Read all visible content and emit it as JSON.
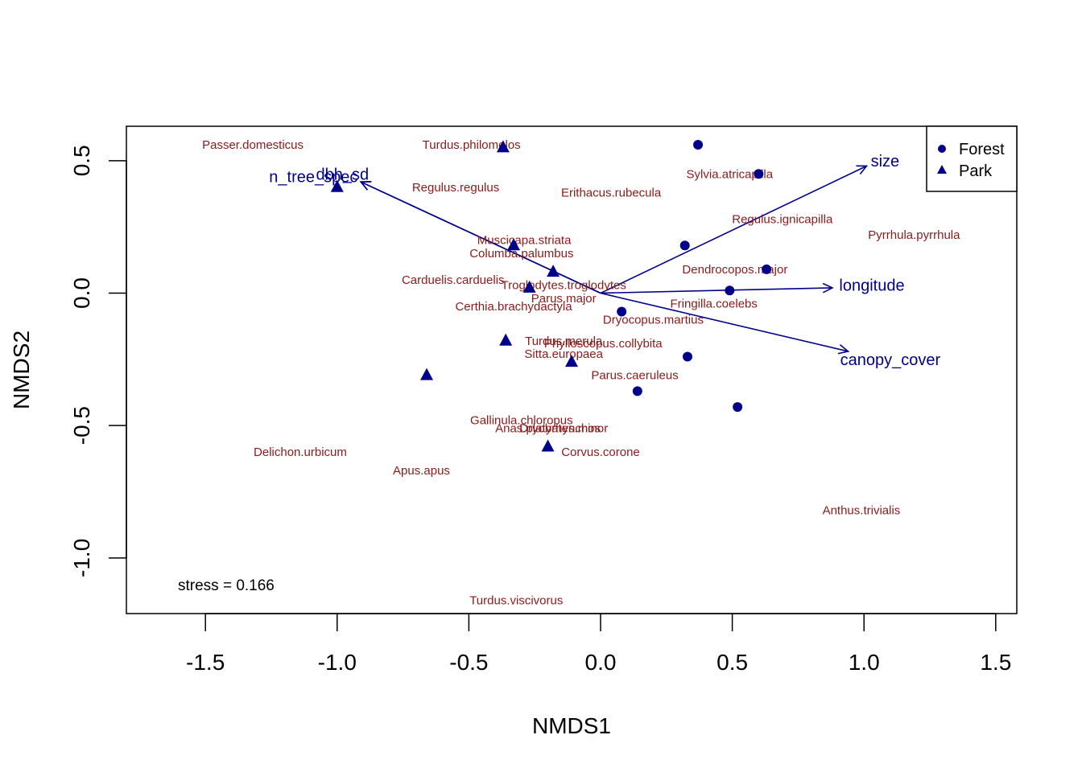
{
  "chart_data": {
    "type": "scatter",
    "xlabel": "NMDS1",
    "ylabel": "NMDS2",
    "xlim": [
      -1.8,
      1.58
    ],
    "ylim": [
      -1.21,
      0.63
    ],
    "x_ticks": [
      -1.5,
      -1.0,
      -0.5,
      0.0,
      0.5,
      1.0,
      1.5
    ],
    "x_tick_labels": [
      "-1.5",
      "-1.0",
      "-0.5",
      "0.0",
      "0.5",
      "1.0",
      "1.5"
    ],
    "y_ticks": [
      -1.0,
      -0.5,
      0.0,
      0.5
    ],
    "y_tick_labels": [
      "-1.0",
      "-0.5",
      "0.0",
      "0.5"
    ],
    "grid": false,
    "legend_position": "top-right",
    "annotation": "stress = 0.166",
    "series": [
      {
        "name": "Forest",
        "marker": "circle",
        "color": "#00008B",
        "points": [
          {
            "x": 0.37,
            "y": 0.56
          },
          {
            "x": 0.6,
            "y": 0.45
          },
          {
            "x": 0.32,
            "y": 0.18
          },
          {
            "x": 0.63,
            "y": 0.09
          },
          {
            "x": 0.49,
            "y": 0.01
          },
          {
            "x": 0.08,
            "y": -0.07
          },
          {
            "x": 0.33,
            "y": -0.24
          },
          {
            "x": 0.14,
            "y": -0.37
          },
          {
            "x": 0.52,
            "y": -0.43
          }
        ]
      },
      {
        "name": "Park",
        "marker": "triangle",
        "color": "#00008B",
        "points": [
          {
            "x": -0.37,
            "y": 0.55
          },
          {
            "x": -1.0,
            "y": 0.4
          },
          {
            "x": -0.33,
            "y": 0.18
          },
          {
            "x": -0.18,
            "y": 0.08
          },
          {
            "x": -0.27,
            "y": 0.02
          },
          {
            "x": -0.36,
            "y": -0.18
          },
          {
            "x": -0.11,
            "y": -0.26
          },
          {
            "x": -0.66,
            "y": -0.31
          },
          {
            "x": -0.2,
            "y": -0.58
          }
        ]
      }
    ],
    "species": [
      {
        "label": "Passer.domesticus",
        "x": -1.32,
        "y": 0.56
      },
      {
        "label": "Turdus.philomelos",
        "x": -0.49,
        "y": 0.56
      },
      {
        "label": "Sylvia.atricapilla",
        "x": 0.49,
        "y": 0.45
      },
      {
        "label": "Regulus.regulus",
        "x": -0.55,
        "y": 0.4
      },
      {
        "label": "Erithacus.rubecula",
        "x": 0.04,
        "y": 0.38
      },
      {
        "label": "Regulus.ignicapilla",
        "x": 0.69,
        "y": 0.28
      },
      {
        "label": "Pyrrhula.pyrrhula",
        "x": 1.19,
        "y": 0.22
      },
      {
        "label": "Muscicapa.striata",
        "x": -0.29,
        "y": 0.2
      },
      {
        "label": "Columba.palumbus",
        "x": -0.3,
        "y": 0.15
      },
      {
        "label": "Dendrocopos.major",
        "x": 0.51,
        "y": 0.09
      },
      {
        "label": "Carduelis.carduelis",
        "x": -0.56,
        "y": 0.05
      },
      {
        "label": "Troglodytes.troglodytes",
        "x": -0.14,
        "y": 0.03
      },
      {
        "label": "Parus.major",
        "x": -0.14,
        "y": -0.02
      },
      {
        "label": "Fringilla.coelebs",
        "x": 0.43,
        "y": -0.04
      },
      {
        "label": "Certhia.brachydactyla",
        "x": -0.33,
        "y": -0.05
      },
      {
        "label": "Dryocopus.martius",
        "x": 0.2,
        "y": -0.1
      },
      {
        "label": "Turdus.merula",
        "x": -0.14,
        "y": -0.18
      },
      {
        "label": "Phylloscopus.collybita",
        "x": 0.01,
        "y": -0.19
      },
      {
        "label": "Sitta.europaea",
        "x": -0.14,
        "y": -0.23
      },
      {
        "label": "Parus.caeruleus",
        "x": 0.13,
        "y": -0.31
      },
      {
        "label": "Gallinula.chloropus",
        "x": -0.3,
        "y": -0.48
      },
      {
        "label": "Anas.platyrhynchos",
        "x": -0.2,
        "y": -0.51
      },
      {
        "label": "Dryobates.minor",
        "x": -0.14,
        "y": -0.51
      },
      {
        "label": "Corvus.corone",
        "x": 0.0,
        "y": -0.6
      },
      {
        "label": "Delichon.urbicum",
        "x": -1.14,
        "y": -0.6
      },
      {
        "label": "Apus.apus",
        "x": -0.68,
        "y": -0.67
      },
      {
        "label": "Anthus.trivialis",
        "x": 0.99,
        "y": -0.82
      },
      {
        "label": "Turdus.viscivorus",
        "x": -0.32,
        "y": -1.16
      }
    ],
    "vectors": [
      {
        "label": "n_tree_spec",
        "x": -0.91,
        "y": 0.42,
        "label_x": -1.09,
        "label_y": 0.44
      },
      {
        "label": "dbh_sd",
        "x": -0.91,
        "y": 0.42,
        "label_x": -0.98,
        "label_y": 0.45
      },
      {
        "label": "size",
        "x": 1.01,
        "y": 0.48,
        "label_x": 1.08,
        "label_y": 0.5
      },
      {
        "label": "longitude",
        "x": 0.88,
        "y": 0.02,
        "label_x": 1.03,
        "label_y": 0.03
      },
      {
        "label": "canopy_cover",
        "x": 0.94,
        "y": -0.22,
        "label_x": 1.1,
        "label_y": -0.25
      }
    ],
    "vector_color": "#00008B",
    "species_color": "#8B1A1A"
  }
}
